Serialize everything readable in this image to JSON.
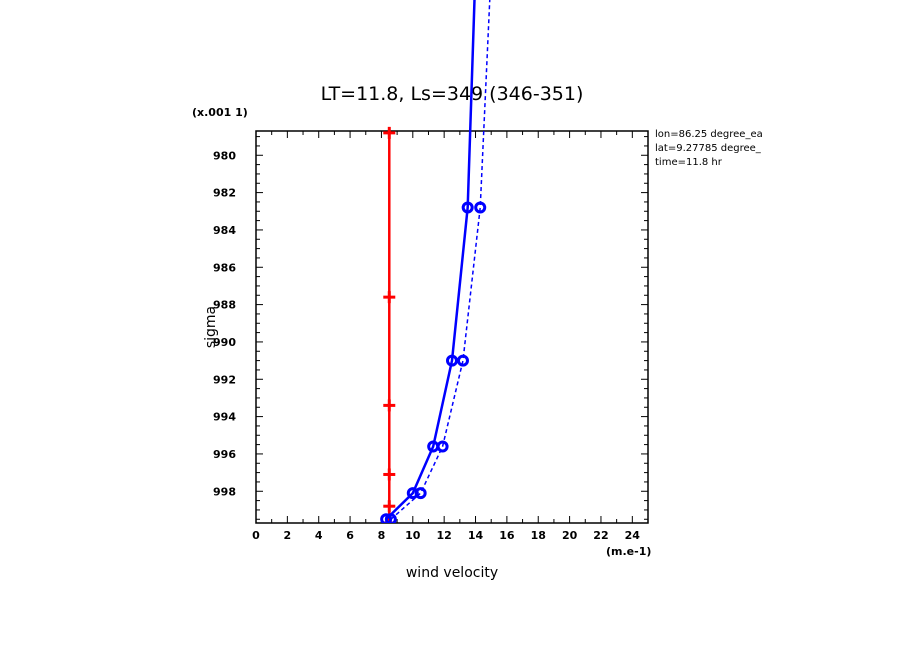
{
  "chart_data": {
    "type": "line",
    "title": "LT=11.8, Ls=349 (346-351)",
    "xlabel": "wind velocity",
    "ylabel": "sigma",
    "x_unit": "(m.e-1)",
    "y_unit": "(x.001 1)",
    "xlim": [
      0,
      25
    ],
    "ylim": [
      999.7,
      978.7
    ],
    "y_inverted": true,
    "x_ticks": [
      "0",
      "2",
      "4",
      "6",
      "8",
      "10",
      "12",
      "14",
      "16",
      "18",
      "20",
      "22",
      "24"
    ],
    "y_ticks": [
      "980",
      "982",
      "984",
      "986",
      "988",
      "990",
      "992",
      "994",
      "996",
      "998"
    ],
    "annotations": [
      "lon=86.25 degree_ea",
      "lat=9.27785 degree_",
      "time=11.8 hr"
    ],
    "grid": false,
    "series": [
      {
        "color": "#ff0000",
        "style": "solid",
        "marker": "plus",
        "x": [
          8.5,
          8.5,
          8.5,
          8.5,
          8.5,
          8.5
        ],
        "y": [
          978.8,
          987.6,
          993.4,
          997.1,
          998.8,
          999.7
        ]
      },
      {
        "color": "#0000ff",
        "style": "solid",
        "marker": "circle",
        "x": [
          8.3,
          10.0,
          11.3,
          12.5,
          13.5,
          14.0
        ],
        "y": [
          999.5,
          998.1,
          995.6,
          991.0,
          982.8,
          970.0
        ]
      },
      {
        "color": "#0000ff",
        "style": "dashed",
        "marker": "circle",
        "x": [
          8.6,
          10.5,
          11.9,
          13.2,
          14.3,
          15.0
        ],
        "y": [
          999.5,
          998.1,
          995.6,
          991.0,
          982.8,
          970.0
        ]
      }
    ]
  }
}
